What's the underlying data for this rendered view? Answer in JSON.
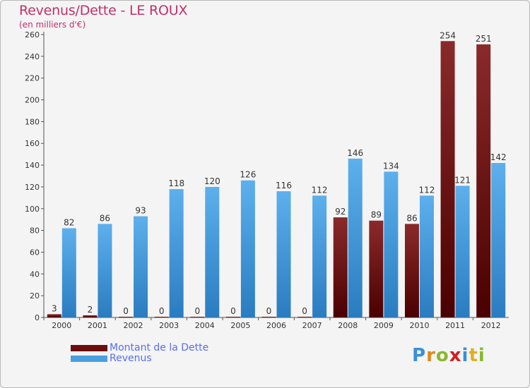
{
  "header": {
    "title": "Revenus/Dette - LE ROUX",
    "subtitle": "(en milliers d'€)"
  },
  "chart_data": {
    "type": "bar",
    "title": "Revenus/Dette - LE ROUX",
    "subtitle": "(en milliers d'€)",
    "xlabel": "",
    "ylabel": "",
    "ylim": [
      0,
      260
    ],
    "yticks": [
      0,
      20,
      40,
      60,
      80,
      100,
      120,
      140,
      160,
      180,
      200,
      220,
      240,
      260
    ],
    "grid": false,
    "legend_position": "bottom-left",
    "categories": [
      "2000",
      "2001",
      "2002",
      "2003",
      "2004",
      "2005",
      "2006",
      "2007",
      "2008",
      "2009",
      "2010",
      "2011",
      "2012"
    ],
    "series": [
      {
        "name": "Montant de la Dette",
        "color": "#7a1a1a",
        "values": [
          3,
          2,
          0,
          0,
          0,
          0,
          0,
          0,
          92,
          89,
          86,
          254,
          251
        ]
      },
      {
        "name": "Revenus",
        "color": "#4a9fdf",
        "values": [
          82,
          86,
          93,
          118,
          120,
          126,
          116,
          112,
          146,
          134,
          112,
          121,
          142
        ]
      }
    ]
  },
  "legend": {
    "items": [
      {
        "label": "Montant de la Dette",
        "color": "#6b0d0d"
      },
      {
        "label": "Revenus",
        "color": "#4a9fdf"
      }
    ]
  },
  "brand": {
    "letters": [
      "P",
      "r",
      "o",
      "x",
      "i",
      "t",
      "i"
    ],
    "colors": [
      "#3a8fd8",
      "#e08a1a",
      "#8ab82a",
      "#d02020",
      "#3a8fd8",
      "#e0b020",
      "#8ab82a"
    ]
  }
}
